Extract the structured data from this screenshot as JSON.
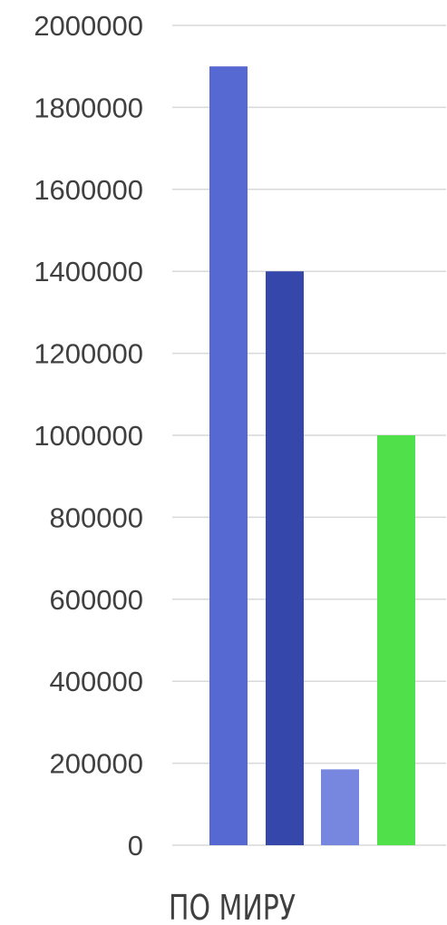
{
  "chart_data": {
    "type": "bar",
    "categories": [
      "ПО МИРУ"
    ],
    "series": [
      {
        "values": [
          1900000
        ],
        "color": "#5668d1"
      },
      {
        "values": [
          1400000
        ],
        "color": "#3647ab"
      },
      {
        "values": [
          185000
        ],
        "color": "#7786de"
      },
      {
        "values": [
          1000000
        ],
        "color": "#4fe04a"
      }
    ],
    "ylim": [
      0,
      2000000
    ],
    "yticks": [
      0,
      200000,
      400000,
      600000,
      800000,
      1000000,
      1200000,
      1400000,
      1600000,
      1800000,
      2000000
    ],
    "grid": true,
    "title": "",
    "xlabel": "",
    "ylabel": ""
  }
}
